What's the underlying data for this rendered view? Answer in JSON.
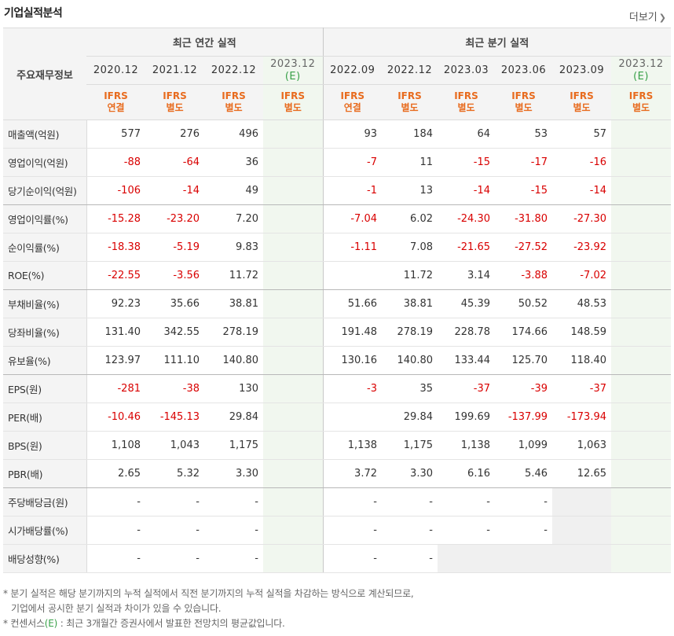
{
  "header": {
    "title": "기업실적분석",
    "more_label": "더보기",
    "more_icon": "chevron-right"
  },
  "table": {
    "corner_label": "주요재무정보",
    "groups": [
      "최근 연간 실적",
      "최근 분기 실적"
    ],
    "periods": [
      "2020.12",
      "2021.12",
      "2022.12",
      "2023.12",
      "2022.09",
      "2022.12",
      "2023.03",
      "2023.06",
      "2023.09",
      "2023.12"
    ],
    "est_mark": "(E)",
    "ifrs_top": "IFRS",
    "ifrs_bottom": [
      "연결",
      "별도",
      "별도",
      "별도",
      "연결",
      "별도",
      "별도",
      "별도",
      "별도",
      "별도"
    ],
    "rows": [
      {
        "label": "매출액(억원)",
        "values": [
          "577",
          "276",
          "496",
          "",
          "93",
          "184",
          "64",
          "53",
          "57",
          ""
        ]
      },
      {
        "label": "영업이익(억원)",
        "values": [
          "-88",
          "-64",
          "36",
          "",
          "-7",
          "11",
          "-15",
          "-17",
          "-16",
          ""
        ]
      },
      {
        "label": "당기순이익(억원)",
        "values": [
          "-106",
          "-14",
          "49",
          "",
          "-1",
          "13",
          "-14",
          "-15",
          "-14",
          ""
        ]
      },
      {
        "label": "영업이익률(%)",
        "values": [
          "-15.28",
          "-23.20",
          "7.20",
          "",
          "-7.04",
          "6.02",
          "-24.30",
          "-31.80",
          "-27.30",
          ""
        ]
      },
      {
        "label": "순이익률(%)",
        "values": [
          "-18.38",
          "-5.19",
          "9.83",
          "",
          "-1.11",
          "7.08",
          "-21.65",
          "-27.52",
          "-23.92",
          ""
        ]
      },
      {
        "label": "ROE(%)",
        "values": [
          "-22.55",
          "-3.56",
          "11.72",
          "",
          "",
          "11.72",
          "3.14",
          "-3.88",
          "-7.02",
          ""
        ]
      },
      {
        "label": "부채비율(%)",
        "values": [
          "92.23",
          "35.66",
          "38.81",
          "",
          "51.66",
          "38.81",
          "45.39",
          "50.52",
          "48.53",
          ""
        ]
      },
      {
        "label": "당좌비율(%)",
        "values": [
          "131.40",
          "342.55",
          "278.19",
          "",
          "191.48",
          "278.19",
          "228.78",
          "174.66",
          "148.59",
          ""
        ]
      },
      {
        "label": "유보율(%)",
        "values": [
          "123.97",
          "111.10",
          "140.80",
          "",
          "130.16",
          "140.80",
          "133.44",
          "125.70",
          "118.40",
          ""
        ]
      },
      {
        "label": "EPS(원)",
        "values": [
          "-281",
          "-38",
          "130",
          "",
          "-3",
          "35",
          "-37",
          "-39",
          "-37",
          ""
        ]
      },
      {
        "label": "PER(배)",
        "values": [
          "-10.46",
          "-145.13",
          "29.84",
          "",
          "",
          "29.84",
          "199.69",
          "-137.99",
          "-173.94",
          ""
        ]
      },
      {
        "label": "BPS(원)",
        "values": [
          "1,108",
          "1,043",
          "1,175",
          "",
          "1,138",
          "1,175",
          "1,138",
          "1,099",
          "1,063",
          ""
        ]
      },
      {
        "label": "PBR(배)",
        "values": [
          "2.65",
          "5.32",
          "3.30",
          "",
          "3.72",
          "3.30",
          "6.16",
          "5.46",
          "12.65",
          ""
        ]
      },
      {
        "label": "주당배당금(원)",
        "values": [
          "-",
          "-",
          "-",
          "",
          "-",
          "-",
          "-",
          "-",
          "",
          ""
        ]
      },
      {
        "label": "시가배당률(%)",
        "values": [
          "-",
          "-",
          "-",
          "",
          "-",
          "-",
          "-",
          "-",
          "",
          ""
        ]
      },
      {
        "label": "배당성향(%)",
        "values": [
          "-",
          "-",
          "-",
          "",
          "-",
          "-",
          "",
          "",
          "",
          ""
        ]
      }
    ]
  },
  "notes": {
    "line1": "분기 실적은 해당 분기까지의 누적 실적에서 직전 분기까지의 누적 실적을 차감하는 방식으로 계산되므로,",
    "line2": "기업에서 공시한 분기 실적과 차이가 있을 수 있습니다.",
    "line3_prefix": "컨센서스",
    "line3_mark": "(E)",
    "line3_suffix": " : 최근 3개월간 증권사에서 발표한 전망치의 평균값입니다."
  },
  "colors": {
    "negative": "#d90000",
    "ifrs": "#e86b1e",
    "estimate_mark": "#38a048",
    "estimate_bg": "#f1f7ef"
  }
}
